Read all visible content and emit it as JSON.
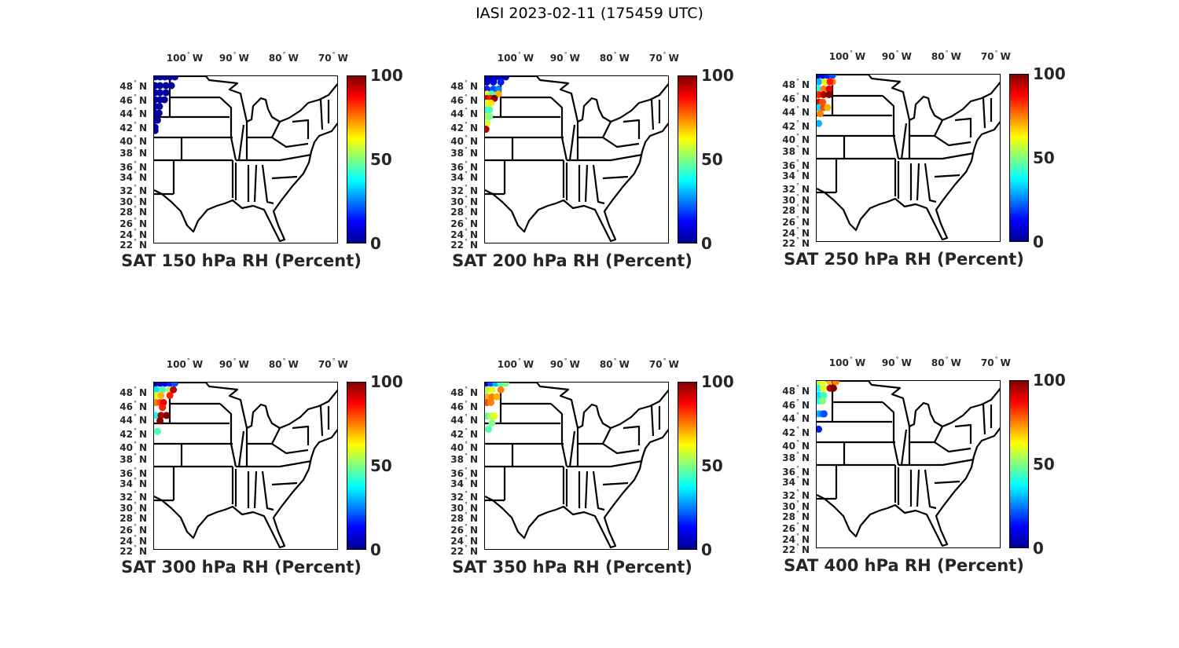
{
  "figure_title": "IASI 2023-02-11 (175459 UTC)",
  "lon_ticks": [
    {
      "v": -100,
      "label": "100",
      "hem": "W"
    },
    {
      "v": -90,
      "label": "90",
      "hem": "W"
    },
    {
      "v": -80,
      "label": "80",
      "hem": "W"
    },
    {
      "v": -70,
      "label": "70",
      "hem": "W"
    }
  ],
  "lat_ticks": [
    {
      "v": 48,
      "label": "48"
    },
    {
      "v": 46,
      "label": "46"
    },
    {
      "v": 44,
      "label": "44"
    },
    {
      "v": 42,
      "label": "42"
    },
    {
      "v": 40,
      "label": "40"
    },
    {
      "v": 38,
      "label": "38"
    },
    {
      "v": 36,
      "label": "36"
    },
    {
      "v": 34,
      "label": "34"
    },
    {
      "v": 32,
      "label": "32"
    },
    {
      "v": 30,
      "label": "30"
    },
    {
      "v": 28,
      "label": "28"
    },
    {
      "v": 26,
      "label": "26"
    },
    {
      "v": 24,
      "label": "24"
    },
    {
      "v": 22,
      "label": "22"
    }
  ],
  "lat_hem": "N",
  "colorbar": {
    "ticks": [
      "100",
      "50",
      "0"
    ],
    "range": [
      0,
      100
    ],
    "colormap": "jet"
  },
  "panels": [
    {
      "title": "SAT 150 hPa RH (Percent)",
      "points": [
        [
          -105.5,
          49.2,
          3
        ],
        [
          -104.5,
          49.2,
          3
        ],
        [
          -103.5,
          49.2,
          3
        ],
        [
          -102.5,
          49.2,
          3
        ],
        [
          -101.5,
          49.2,
          3
        ],
        [
          -105.5,
          48,
          3
        ],
        [
          -104.5,
          48,
          3
        ],
        [
          -103.3,
          48,
          3
        ],
        [
          -102.2,
          48,
          3
        ],
        [
          -105.5,
          47,
          3
        ],
        [
          -104.5,
          47,
          3
        ],
        [
          -103.3,
          47,
          3
        ],
        [
          -105.5,
          46,
          3
        ],
        [
          -104.5,
          46,
          3
        ],
        [
          -103.6,
          46,
          3
        ],
        [
          -105.5,
          45,
          3
        ],
        [
          -104.6,
          45,
          3
        ],
        [
          -105.5,
          44,
          3
        ],
        [
          -104.7,
          44,
          3
        ],
        [
          -105.5,
          43,
          3
        ],
        [
          -105,
          43,
          3
        ],
        [
          -105.5,
          42,
          3
        ],
        [
          -105.5,
          41.5,
          3
        ]
      ]
    },
    {
      "title": "SAT 200 hPa RH (Percent)",
      "points": [
        [
          -105.5,
          49.2,
          5
        ],
        [
          -104.5,
          49.2,
          5
        ],
        [
          -103.5,
          49.2,
          5
        ],
        [
          -102.5,
          49.2,
          5
        ],
        [
          -101.5,
          49.2,
          5
        ],
        [
          -105.3,
          48.5,
          5
        ],
        [
          -104,
          48.5,
          10
        ],
        [
          -102.5,
          48.5,
          15
        ],
        [
          -105.3,
          47.5,
          15
        ],
        [
          -104,
          47.5,
          20
        ],
        [
          -103,
          47.5,
          25
        ],
        [
          -105.3,
          46.8,
          60
        ],
        [
          -104.3,
          46.8,
          45
        ],
        [
          -103,
          46.8,
          70
        ],
        [
          -105.3,
          46.2,
          90
        ],
        [
          -104.5,
          46.2,
          85
        ],
        [
          -103.8,
          46.2,
          100
        ],
        [
          -105.3,
          45.5,
          60
        ],
        [
          -104.5,
          45.5,
          65
        ],
        [
          -105.3,
          44.5,
          40
        ],
        [
          -104.8,
          44.5,
          45
        ],
        [
          -105.3,
          43.5,
          55
        ],
        [
          -104.8,
          43.5,
          50
        ],
        [
          -105.3,
          42.5,
          60
        ],
        [
          -105.5,
          41.7,
          95
        ]
      ]
    },
    {
      "title": "SAT 250 hPa RH (Percent)",
      "points": [
        [
          -105.5,
          49.2,
          5
        ],
        [
          -104.5,
          49.2,
          10
        ],
        [
          -103.5,
          49.2,
          15
        ],
        [
          -102.5,
          49.2,
          20
        ],
        [
          -105.3,
          48.3,
          30
        ],
        [
          -104,
          48.3,
          60
        ],
        [
          -102.5,
          48.3,
          75
        ],
        [
          -103,
          48.3,
          85
        ],
        [
          -105.3,
          47.3,
          40
        ],
        [
          -104.3,
          47.3,
          75
        ],
        [
          -103.2,
          47.3,
          90
        ],
        [
          -105.3,
          46.5,
          85
        ],
        [
          -104.3,
          46.5,
          95
        ],
        [
          -103.2,
          46.5,
          100
        ],
        [
          -105.3,
          45.4,
          90
        ],
        [
          -104.5,
          45.4,
          80
        ],
        [
          -105.3,
          44.6,
          35
        ],
        [
          -104.3,
          44.6,
          80
        ],
        [
          -103.5,
          44.6,
          70
        ],
        [
          -105,
          43.7,
          75
        ],
        [
          -105.3,
          42.3,
          30
        ]
      ]
    },
    {
      "title": "SAT 300 hPa RH (Percent)",
      "points": [
        [
          -105.5,
          49.2,
          5
        ],
        [
          -104.5,
          49.2,
          8
        ],
        [
          -103.5,
          49.2,
          10
        ],
        [
          -102.5,
          49.2,
          15
        ],
        [
          -101.5,
          49.2,
          20
        ],
        [
          -105.3,
          48.3,
          35
        ],
        [
          -104,
          48.3,
          45
        ],
        [
          -102.5,
          48.3,
          55
        ],
        [
          -101.8,
          48.3,
          95
        ],
        [
          -105.3,
          47.5,
          60
        ],
        [
          -104.3,
          47.5,
          70
        ],
        [
          -102.5,
          47.5,
          85
        ],
        [
          -105.3,
          46.5,
          75
        ],
        [
          -104.5,
          46.5,
          80
        ],
        [
          -103.8,
          46.5,
          90
        ],
        [
          -104,
          45.8,
          85
        ],
        [
          -105.3,
          44.6,
          40
        ],
        [
          -104.3,
          44.6,
          95
        ],
        [
          -103.2,
          44.6,
          100
        ],
        [
          -104.5,
          43.8,
          100
        ],
        [
          -105,
          42.3,
          45
        ]
      ]
    },
    {
      "title": "SAT 350 hPa RH (Percent)",
      "points": [
        [
          -105.5,
          49.2,
          10
        ],
        [
          -104.5,
          49.2,
          20
        ],
        [
          -103.5,
          49.2,
          30
        ],
        [
          -102.5,
          49.2,
          45
        ],
        [
          -101.5,
          49.2,
          50
        ],
        [
          -105.3,
          48.3,
          55
        ],
        [
          -104.3,
          48.3,
          60
        ],
        [
          -102.5,
          48.3,
          75
        ],
        [
          -105.3,
          47.3,
          70
        ],
        [
          -104.3,
          47.3,
          75
        ],
        [
          -103.3,
          47.3,
          70
        ],
        [
          -105.3,
          46.5,
          80
        ],
        [
          -104.5,
          46.5,
          75
        ],
        [
          -105.3,
          44.5,
          45
        ],
        [
          -104.5,
          44.5,
          55
        ],
        [
          -103.8,
          44.5,
          60
        ],
        [
          -104.3,
          43.5,
          50
        ],
        [
          -105,
          42.6,
          45
        ]
      ]
    },
    {
      "title": "SAT 400 hPa RH (Percent)",
      "points": [
        [
          -105.5,
          49.2,
          55
        ],
        [
          -104.5,
          49.2,
          60
        ],
        [
          -103,
          49.2,
          70
        ],
        [
          -102,
          49.2,
          90
        ],
        [
          -101.8,
          49.2,
          75
        ],
        [
          -105.3,
          48.3,
          40
        ],
        [
          -104.3,
          48.3,
          60
        ],
        [
          -103,
          48.3,
          95
        ],
        [
          -102.3,
          48.3,
          100
        ],
        [
          -105.3,
          47.3,
          35
        ],
        [
          -104.3,
          47.3,
          45
        ],
        [
          -105.3,
          46.5,
          40
        ],
        [
          -104.5,
          46.5,
          50
        ],
        [
          -105.3,
          44.6,
          30
        ],
        [
          -104.5,
          44.6,
          25
        ],
        [
          -104.2,
          44.6,
          20
        ],
        [
          -105.3,
          42.4,
          15
        ]
      ]
    }
  ]
}
